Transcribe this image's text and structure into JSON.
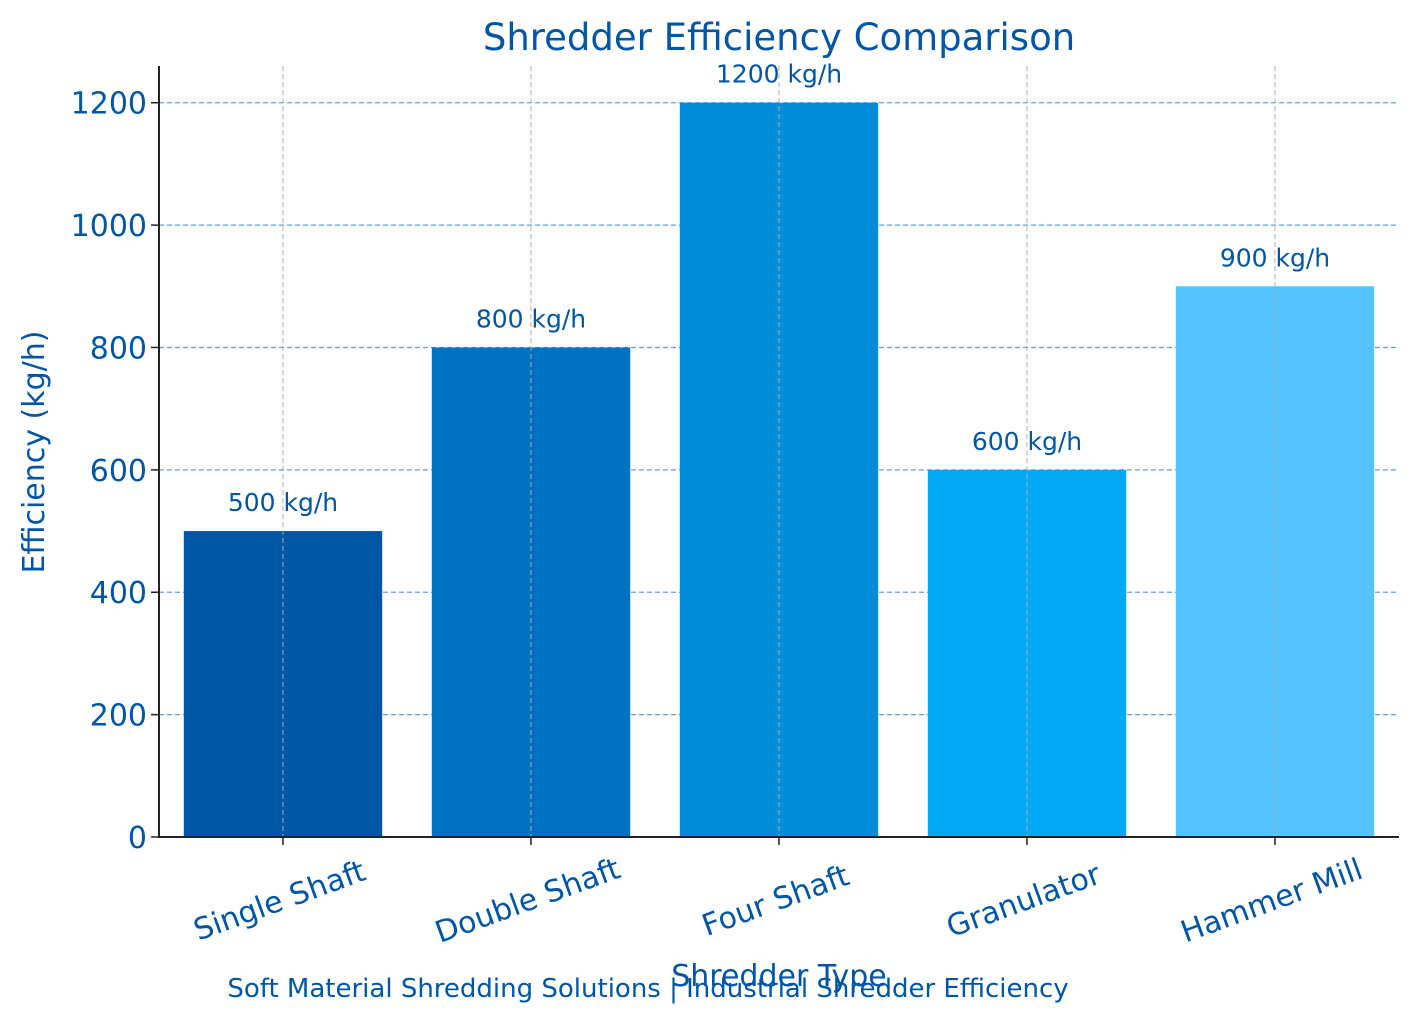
{
  "chart_data": {
    "type": "bar",
    "title": "Shredder Efficiency Comparison",
    "xlabel": "Shredder Type",
    "ylabel": "Efficiency (kg/h)",
    "categories": [
      "Single Shaft",
      "Double Shaft",
      "Four Shaft",
      "Granulator",
      "Hammer Mill"
    ],
    "values": [
      500,
      800,
      1200,
      600,
      900
    ],
    "value_labels": [
      "500 kg/h",
      "800 kg/h",
      "1200 kg/h",
      "600 kg/h",
      "900 kg/h"
    ],
    "colors": [
      "#0055A4",
      "#0070C0",
      "#038CD8",
      "#03A9F4",
      "#56C2FE"
    ],
    "ylim": [
      0,
      1260
    ],
    "yticks": [
      0,
      200,
      400,
      600,
      800,
      1000,
      1200
    ],
    "ytick_labels": [
      "0",
      "200",
      "400",
      "600",
      "800",
      "1000",
      "1200"
    ],
    "grid": true,
    "grid_color": "#3A7DB5",
    "text_color": "#0055A4",
    "footer": "Soft Material Shredding Solutions | Industrial Shredder Efficiency"
  }
}
